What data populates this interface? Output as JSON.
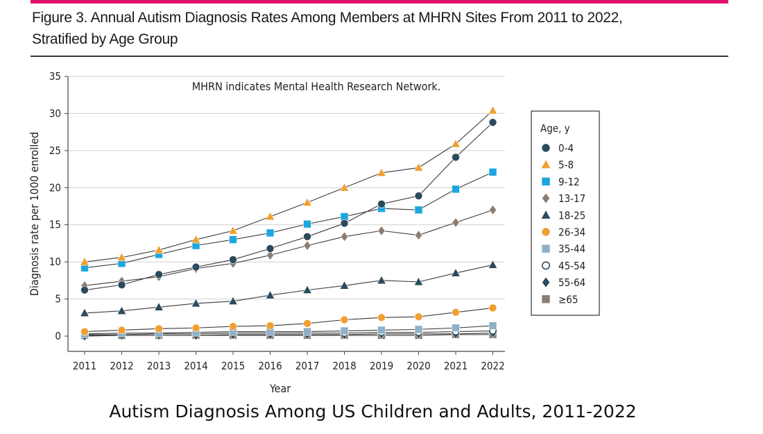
{
  "page": {
    "accent_color": "#e0106e",
    "figure_title_line1": "Figure 3. Annual Autism Diagnosis Rates Among Members at MHRN Sites From 2011 to 2022,",
    "figure_title_line2": "Stratified by Age Group",
    "bottom_caption": "Autism Diagnosis Among US Children and Adults, 2011-2022"
  },
  "chart_data": {
    "type": "line",
    "annotation": "MHRN indicates Mental Health Research Network.",
    "xlabel": "Year",
    "ylabel": "Diagnosis rate per 1000 enrolled",
    "ylim": [
      0,
      35
    ],
    "yticks": [
      0,
      5,
      10,
      15,
      20,
      25,
      30,
      35
    ],
    "legend_title": "Age, y",
    "legend_position": "right",
    "grid": "horizontal",
    "x": [
      "2011",
      "2012",
      "2013",
      "2014",
      "2015",
      "2016",
      "2017",
      "2018",
      "2019",
      "2020",
      "2021",
      "2022"
    ],
    "series": [
      {
        "name": "0-4",
        "marker": "circle",
        "color": "#2b4a5c",
        "values": [
          6.2,
          6.9,
          8.3,
          9.3,
          10.3,
          11.8,
          13.4,
          15.2,
          17.8,
          18.9,
          24.1,
          28.8
        ]
      },
      {
        "name": "5-8",
        "marker": "triangle",
        "color": "#f0a030",
        "values": [
          10.0,
          10.6,
          11.6,
          13.0,
          14.2,
          16.1,
          18.0,
          20.0,
          22.0,
          22.7,
          25.9,
          30.4
        ]
      },
      {
        "name": "9-12",
        "marker": "square",
        "color": "#1ca6e0",
        "values": [
          9.2,
          9.8,
          11.0,
          12.2,
          13.0,
          13.9,
          15.1,
          16.1,
          17.2,
          17.0,
          19.8,
          22.1
        ]
      },
      {
        "name": "13-17",
        "marker": "diamond",
        "color": "#8c7d72",
        "values": [
          6.8,
          7.4,
          8.0,
          9.1,
          9.8,
          10.9,
          12.2,
          13.4,
          14.2,
          13.6,
          15.3,
          17.0
        ]
      },
      {
        "name": "18-25",
        "marker": "triangle",
        "color": "#2b4a5c",
        "values": [
          3.1,
          3.4,
          3.9,
          4.4,
          4.7,
          5.5,
          6.2,
          6.8,
          7.5,
          7.3,
          8.5,
          9.6
        ]
      },
      {
        "name": "26-34",
        "marker": "circle",
        "color": "#f0a030",
        "values": [
          0.6,
          0.8,
          1.0,
          1.1,
          1.3,
          1.4,
          1.7,
          2.2,
          2.5,
          2.6,
          3.2,
          3.8
        ]
      },
      {
        "name": "35-44",
        "marker": "square",
        "color": "#8fb0c8",
        "values": [
          0.3,
          0.4,
          0.4,
          0.5,
          0.6,
          0.6,
          0.6,
          0.7,
          0.8,
          0.9,
          1.1,
          1.4
        ]
      },
      {
        "name": "45-54",
        "marker": "open-circle",
        "color": "#2b4a5c",
        "values": [
          0.2,
          0.2,
          0.3,
          0.3,
          0.4,
          0.4,
          0.4,
          0.4,
          0.5,
          0.5,
          0.6,
          0.7
        ]
      },
      {
        "name": "55-64",
        "marker": "diamond",
        "color": "#2b4a5c",
        "values": [
          0.0,
          0.1,
          0.1,
          0.1,
          0.2,
          0.2,
          0.2,
          0.2,
          0.3,
          0.3,
          0.3,
          0.4
        ]
      },
      {
        "name": "≥65",
        "marker": "square",
        "color": "#8c7d72",
        "values": [
          0.1,
          0.1,
          0.1,
          0.1,
          0.1,
          0.1,
          0.1,
          0.1,
          0.1,
          0.1,
          0.2,
          0.2
        ]
      }
    ]
  }
}
